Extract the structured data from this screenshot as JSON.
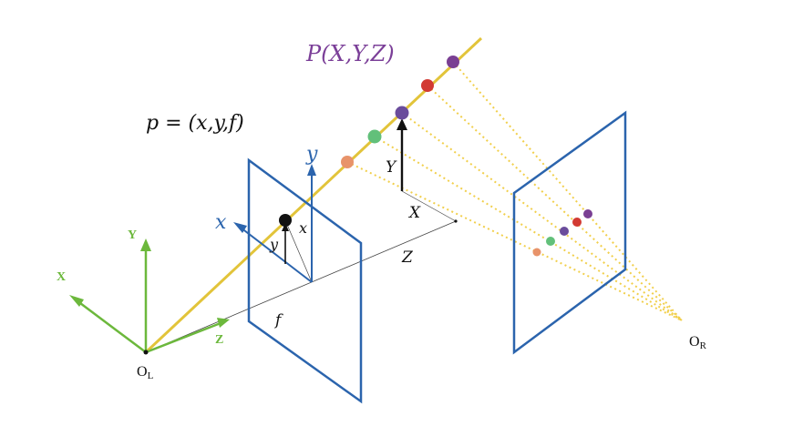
{
  "labels": {
    "point_world": "P(X,Y,Z)",
    "point_image": "p = (x,y,f)",
    "world_axis_x": "X",
    "world_axis_y": "Y",
    "world_axis_z": "Z",
    "image_axis_x": "x",
    "image_axis_y": "y",
    "image_coord_x": "x",
    "image_coord_y": "y",
    "focal_length": "f",
    "depth": "Z",
    "world_coord_x": "X",
    "world_coord_y": "Y",
    "left_origin_base": "O",
    "left_origin_sub": "L",
    "right_origin_base": "O",
    "right_origin_sub": "R"
  },
  "colors": {
    "ray": "#e2c43a",
    "ray_dotted": "#f1cf4b",
    "image_plane": "#2b64ad",
    "image_axes": "#2b64ad",
    "world_axes": "#6cb83c",
    "point_label": "#7b3f98",
    "ink": "#111111",
    "sphere_orange": "#e8936a",
    "sphere_green": "#62c07a",
    "sphere_purple": "#6a4c9c",
    "sphere_red": "#d23a33",
    "sphere_violet": "#7a3f93"
  }
}
